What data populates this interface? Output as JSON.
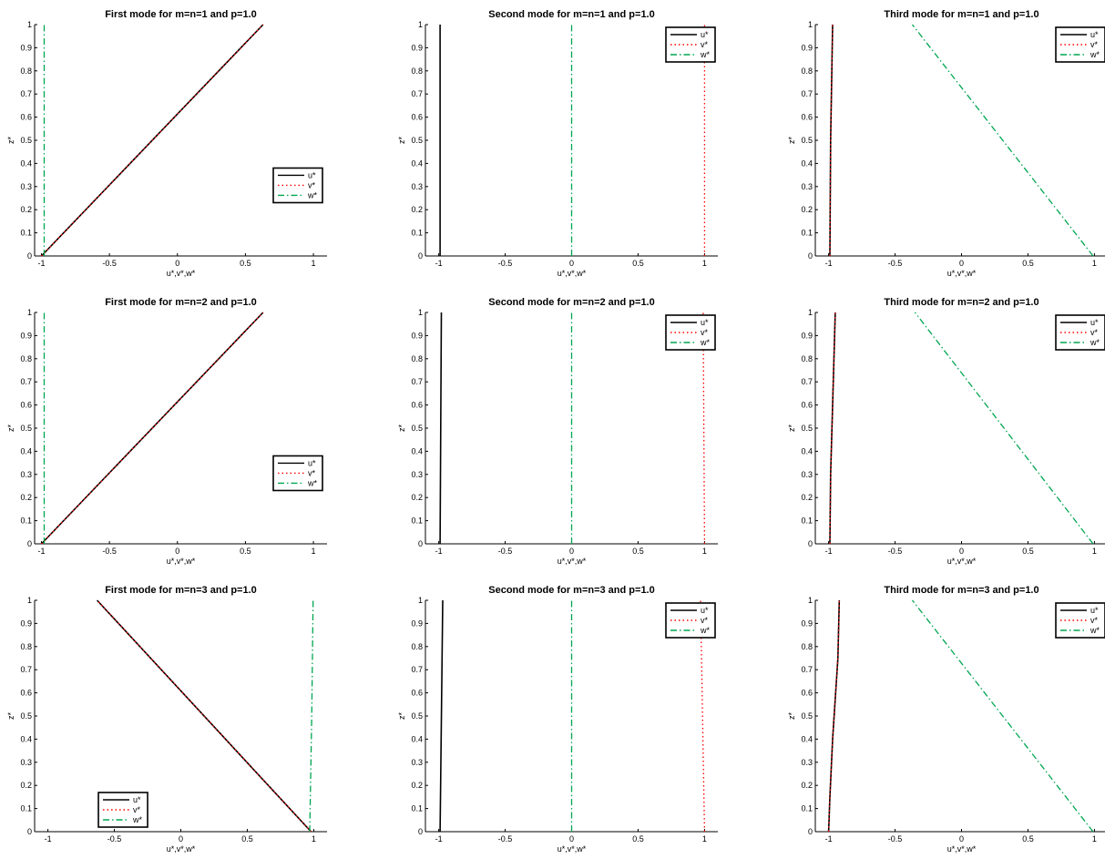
{
  "figure": {
    "rows": 3,
    "cols": 3,
    "background": "#ffffff"
  },
  "series_styles": [
    {
      "name": "u*",
      "color": "#000000",
      "dash": "solid"
    },
    {
      "name": "v*",
      "color": "#ff0000",
      "dash": "dotted"
    },
    {
      "name": "w*",
      "color": "#00a651",
      "dash": "dashdot"
    }
  ],
  "chart_data": [
    {
      "type": "line",
      "title": "First mode for m=n=1 and p=1.0",
      "xlabel": "u*,v*,w*",
      "ylabel": "z*",
      "xlim": [
        -1.05,
        1.1
      ],
      "ylim": [
        0,
        1
      ],
      "xticks": [
        -1,
        -0.5,
        0,
        0.5,
        1
      ],
      "xticklabels": [
        "-1",
        "-0.5",
        "0",
        "0.5",
        "1"
      ],
      "yticks": [
        0,
        0.1,
        0.2,
        0.3,
        0.4,
        0.5,
        0.6,
        0.7,
        0.8,
        0.9,
        1
      ],
      "yticklabels": [
        "0",
        "0.1",
        "0.2",
        "0.3",
        "0.4",
        "0.5",
        "0.6",
        "0.7",
        "0.8",
        "0.9",
        "1"
      ],
      "legend": {
        "position": "right",
        "entries": [
          "u*",
          "v*",
          "w*"
        ]
      },
      "series": [
        {
          "name": "u*",
          "points": [
            [
              -1,
              0
            ],
            [
              0.63,
              1
            ]
          ]
        },
        {
          "name": "v*",
          "points": [
            [
              -1,
              0
            ],
            [
              0.63,
              1
            ]
          ]
        },
        {
          "name": "w*",
          "points": [
            [
              -0.98,
              0
            ],
            [
              -0.98,
              1
            ]
          ]
        }
      ]
    },
    {
      "type": "line",
      "title": "Second mode for m=n=1 and p=1.0",
      "xlabel": "u*,v*,w*",
      "ylabel": "z*",
      "xlim": [
        -1.1,
        1.1
      ],
      "ylim": [
        0,
        1
      ],
      "xticks": [
        -1,
        -0.5,
        0,
        0.5,
        1
      ],
      "xticklabels": [
        "-1",
        "-0.5",
        "0",
        "0.5",
        "1"
      ],
      "yticks": [
        0,
        0.1,
        0.2,
        0.3,
        0.4,
        0.5,
        0.6,
        0.7,
        0.8,
        0.9,
        1
      ],
      "yticklabels": [
        "0",
        "0.1",
        "0.2",
        "0.3",
        "0.4",
        "0.5",
        "0.6",
        "0.7",
        "0.8",
        "0.9",
        "1"
      ],
      "legend": {
        "position": "top-right",
        "entries": [
          "u*",
          "v*",
          "w*"
        ]
      },
      "series": [
        {
          "name": "u*",
          "points": [
            [
              -0.99,
              0
            ],
            [
              -0.99,
              1
            ]
          ]
        },
        {
          "name": "v*",
          "points": [
            [
              1,
              0
            ],
            [
              1,
              1
            ]
          ]
        },
        {
          "name": "w*",
          "points": [
            [
              0,
              0
            ],
            [
              0,
              1
            ]
          ]
        }
      ]
    },
    {
      "type": "line",
      "title": "Third mode for m=n=1 and p=1.0",
      "xlabel": "u*,v*,w*",
      "ylabel": "z*",
      "xlim": [
        -1.1,
        1.1
      ],
      "ylim": [
        0,
        1
      ],
      "xticks": [
        -1,
        -0.5,
        0,
        0.5,
        1
      ],
      "xticklabels": [
        "-1",
        "-0.5",
        "0",
        "0.5",
        "1"
      ],
      "yticks": [
        0,
        0.1,
        0.2,
        0.3,
        0.4,
        0.5,
        0.6,
        0.7,
        0.8,
        0.9,
        1
      ],
      "yticklabels": [
        "0",
        "0.1",
        "0.2",
        "0.3",
        "0.4",
        "0.5",
        "0.6",
        "0.7",
        "0.8",
        "0.9",
        "1"
      ],
      "legend": {
        "position": "top-right",
        "entries": [
          "u*",
          "v*",
          "w*"
        ]
      },
      "series": [
        {
          "name": "u*",
          "points": [
            [
              -0.99,
              0
            ],
            [
              -0.985,
              0.5
            ],
            [
              -0.97,
              1
            ]
          ]
        },
        {
          "name": "v*",
          "points": [
            [
              -0.99,
              0
            ],
            [
              -0.985,
              0.5
            ],
            [
              -0.97,
              1
            ]
          ]
        },
        {
          "name": "w*",
          "points": [
            [
              0.99,
              0
            ],
            [
              -0.37,
              1
            ]
          ]
        }
      ]
    },
    {
      "type": "line",
      "title": "First mode for m=n=2 and p=1.0",
      "xlabel": "u*,v*,w*",
      "ylabel": "z*",
      "xlim": [
        -1.05,
        1.1
      ],
      "ylim": [
        0,
        1
      ],
      "xticks": [
        -1,
        -0.5,
        0,
        0.5,
        1
      ],
      "xticklabels": [
        "-1",
        "-0.5",
        "0",
        "0.5",
        "1"
      ],
      "yticks": [
        0,
        0.1,
        0.2,
        0.3,
        0.4,
        0.5,
        0.6,
        0.7,
        0.8,
        0.9,
        1
      ],
      "yticklabels": [
        "0",
        "0.1",
        "0.2",
        "0.3",
        "0.4",
        "0.5",
        "0.6",
        "0.7",
        "0.8",
        "0.9",
        "1"
      ],
      "legend": {
        "position": "right",
        "entries": [
          "u*",
          "v*",
          "w*"
        ]
      },
      "series": [
        {
          "name": "u*",
          "points": [
            [
              -1,
              0
            ],
            [
              0.63,
              1
            ]
          ]
        },
        {
          "name": "v*",
          "points": [
            [
              -1,
              0
            ],
            [
              0.63,
              1
            ]
          ]
        },
        {
          "name": "w*",
          "points": [
            [
              -0.98,
              0
            ],
            [
              -0.98,
              1
            ]
          ]
        }
      ]
    },
    {
      "type": "line",
      "title": "Second mode for m=n=2 and p=1.0",
      "xlabel": "u*,v*,w*",
      "ylabel": "z*",
      "xlim": [
        -1.1,
        1.1
      ],
      "ylim": [
        0,
        1
      ],
      "xticks": [
        -1,
        -0.5,
        0,
        0.5,
        1
      ],
      "xticklabels": [
        "-1",
        "-0.5",
        "0",
        "0.5",
        "1"
      ],
      "yticks": [
        0,
        0.1,
        0.2,
        0.3,
        0.4,
        0.5,
        0.6,
        0.7,
        0.8,
        0.9,
        1
      ],
      "yticklabels": [
        "0",
        "0.1",
        "0.2",
        "0.3",
        "0.4",
        "0.5",
        "0.6",
        "0.7",
        "0.8",
        "0.9",
        "1"
      ],
      "legend": {
        "position": "top-right",
        "entries": [
          "u*",
          "v*",
          "w*"
        ]
      },
      "series": [
        {
          "name": "u*",
          "points": [
            [
              -0.99,
              0
            ],
            [
              -0.98,
              1
            ]
          ]
        },
        {
          "name": "v*",
          "points": [
            [
              1,
              0
            ],
            [
              0.99,
              1
            ]
          ]
        },
        {
          "name": "w*",
          "points": [
            [
              0,
              0
            ],
            [
              0,
              1
            ]
          ]
        }
      ]
    },
    {
      "type": "line",
      "title": "Third mode for m=n=2 and p=1.0",
      "xlabel": "u*,v*,w*",
      "ylabel": "z*",
      "xlim": [
        -1.1,
        1.1
      ],
      "ylim": [
        0,
        1
      ],
      "xticks": [
        -1,
        -0.5,
        0,
        0.5,
        1
      ],
      "xticklabels": [
        "-1",
        "-0.5",
        "0",
        "0.5",
        "1"
      ],
      "yticks": [
        0,
        0.1,
        0.2,
        0.3,
        0.4,
        0.5,
        0.6,
        0.7,
        0.8,
        0.9,
        1
      ],
      "yticklabels": [
        "0",
        "0.1",
        "0.2",
        "0.3",
        "0.4",
        "0.5",
        "0.6",
        "0.7",
        "0.8",
        "0.9",
        "1"
      ],
      "legend": {
        "position": "top-right",
        "entries": [
          "u*",
          "v*",
          "w*"
        ]
      },
      "series": [
        {
          "name": "u*",
          "points": [
            [
              -0.99,
              0
            ],
            [
              -0.985,
              0.3
            ],
            [
              -0.97,
              0.6
            ],
            [
              -0.95,
              1
            ]
          ]
        },
        {
          "name": "v*",
          "points": [
            [
              -0.99,
              0
            ],
            [
              -0.985,
              0.3
            ],
            [
              -0.97,
              0.6
            ],
            [
              -0.95,
              1
            ]
          ]
        },
        {
          "name": "w*",
          "points": [
            [
              0.99,
              0
            ],
            [
              -0.35,
              1
            ]
          ]
        }
      ]
    },
    {
      "type": "line",
      "title": "First mode for m=n=3 and p=1.0",
      "xlabel": "u*,v*,w*",
      "ylabel": "z*",
      "xlim": [
        -1.1,
        1.1
      ],
      "ylim": [
        0,
        1
      ],
      "xticks": [
        -1,
        -0.5,
        0,
        0.5,
        1
      ],
      "xticklabels": [
        "-1",
        "-0.5",
        "0",
        "0.5",
        "1"
      ],
      "yticks": [
        0,
        0.1,
        0.2,
        0.3,
        0.4,
        0.5,
        0.6,
        0.7,
        0.8,
        0.9,
        1
      ],
      "yticklabels": [
        "0",
        "0.1",
        "0.2",
        "0.3",
        "0.4",
        "0.5",
        "0.6",
        "0.7",
        "0.8",
        "0.9",
        "1"
      ],
      "legend": {
        "position": "bottom-left",
        "entries": [
          "u*",
          "v*",
          "w*"
        ]
      },
      "series": [
        {
          "name": "u*",
          "points": [
            [
              0.98,
              0
            ],
            [
              -0.63,
              1
            ]
          ]
        },
        {
          "name": "v*",
          "points": [
            [
              0.98,
              0
            ],
            [
              -0.63,
              1
            ]
          ]
        },
        {
          "name": "w*",
          "points": [
            [
              0.97,
              0
            ],
            [
              0.985,
              0.5
            ],
            [
              0.995,
              1
            ]
          ]
        }
      ]
    },
    {
      "type": "line",
      "title": "Second mode for m=n=3 and p=1.0",
      "xlabel": "u*,v*,w*",
      "ylabel": "z*",
      "xlim": [
        -1.1,
        1.1
      ],
      "ylim": [
        0,
        1
      ],
      "xticks": [
        -1,
        -0.5,
        0,
        0.5,
        1
      ],
      "xticklabels": [
        "-1",
        "-0.5",
        "0",
        "0.5",
        "1"
      ],
      "yticks": [
        0,
        0.1,
        0.2,
        0.3,
        0.4,
        0.5,
        0.6,
        0.7,
        0.8,
        0.9,
        1
      ],
      "yticklabels": [
        "0",
        "0.1",
        "0.2",
        "0.3",
        "0.4",
        "0.5",
        "0.6",
        "0.7",
        "0.8",
        "0.9",
        "1"
      ],
      "legend": {
        "position": "top-right",
        "entries": [
          "u*",
          "v*",
          "w*"
        ]
      },
      "series": [
        {
          "name": "u*",
          "points": [
            [
              -0.99,
              0
            ],
            [
              -0.97,
              1
            ]
          ]
        },
        {
          "name": "v*",
          "points": [
            [
              1,
              0
            ],
            [
              0.97,
              1
            ]
          ]
        },
        {
          "name": "w*",
          "points": [
            [
              0,
              0
            ],
            [
              0,
              1
            ]
          ]
        }
      ]
    },
    {
      "type": "line",
      "title": "Third mode for m=n=3 and p=1.0",
      "xlabel": "u*,v*,w*",
      "ylabel": "z*",
      "xlim": [
        -1.1,
        1.1
      ],
      "ylim": [
        0,
        1
      ],
      "xticks": [
        -1,
        -0.5,
        0,
        0.5,
        1
      ],
      "xticklabels": [
        "-1",
        "-0.5",
        "0",
        "0.5",
        "1"
      ],
      "yticks": [
        0,
        0.1,
        0.2,
        0.3,
        0.4,
        0.5,
        0.6,
        0.7,
        0.8,
        0.9,
        1
      ],
      "yticklabels": [
        "0",
        "0.1",
        "0.2",
        "0.3",
        "0.4",
        "0.5",
        "0.6",
        "0.7",
        "0.8",
        "0.9",
        "1"
      ],
      "legend": {
        "position": "top-right",
        "entries": [
          "u*",
          "v*",
          "w*"
        ]
      },
      "series": [
        {
          "name": "u*",
          "points": [
            [
              -1,
              0
            ],
            [
              -0.99,
              0.15
            ],
            [
              -0.97,
              0.4
            ],
            [
              -0.93,
              0.75
            ],
            [
              -0.92,
              1
            ]
          ]
        },
        {
          "name": "v*",
          "points": [
            [
              -1,
              0
            ],
            [
              -0.99,
              0.15
            ],
            [
              -0.97,
              0.4
            ],
            [
              -0.93,
              0.75
            ],
            [
              -0.92,
              1
            ]
          ]
        },
        {
          "name": "w*",
          "points": [
            [
              0.99,
              0
            ],
            [
              -0.37,
              1
            ]
          ]
        }
      ]
    }
  ]
}
